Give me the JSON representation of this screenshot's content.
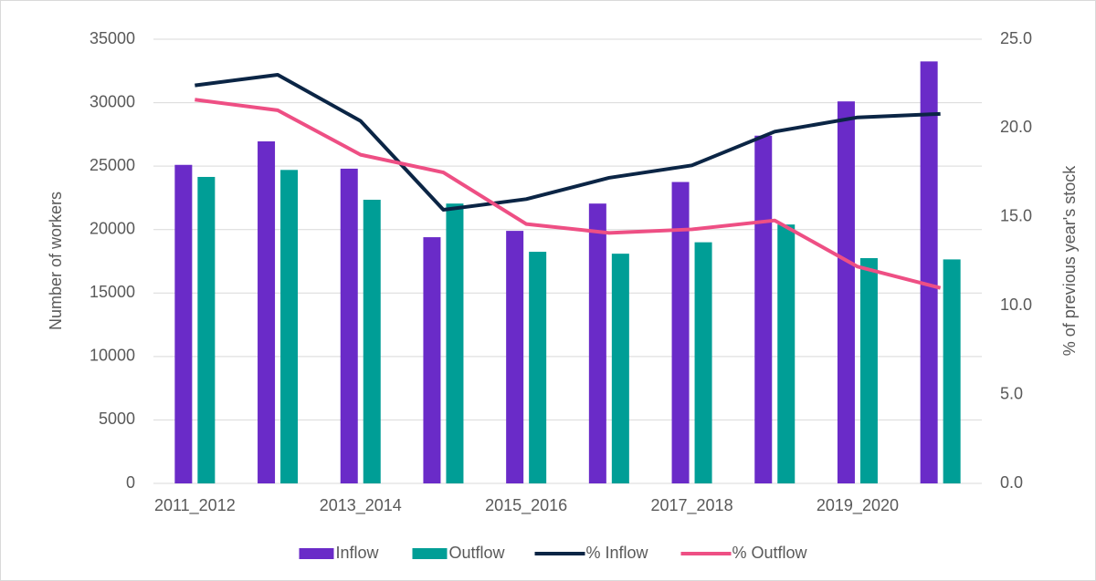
{
  "chart_data": {
    "type": "bar_line",
    "categories": [
      "2011_2012",
      null,
      "2013_2014",
      null,
      "2015_2016",
      null,
      "2017_2018",
      null,
      "2019_2020",
      null
    ],
    "ylabel": "Number of workers",
    "y2label": "% of previous year's stock",
    "ylim": [
      0,
      35000
    ],
    "yticks": [
      0,
      5000,
      10000,
      15000,
      20000,
      25000,
      30000,
      35000
    ],
    "y2lim": [
      0,
      25
    ],
    "y2ticks": [
      {
        "value": 0,
        "label": "0.0"
      },
      {
        "value": 5,
        "label": "5.0"
      },
      {
        "value": 10,
        "label": "10.0"
      },
      {
        "value": 15,
        "label": "15.0"
      },
      {
        "value": 20,
        "label": "20.0"
      },
      {
        "value": 25,
        "label": "25.0"
      }
    ],
    "grid": true,
    "legend": "bottom",
    "series": [
      {
        "name": "Inflow",
        "kind": "bar",
        "color": "#6a2bc8",
        "values": [
          25100,
          26950,
          24800,
          19400,
          19900,
          22050,
          23750,
          27400,
          30100,
          33250
        ]
      },
      {
        "name": "Outflow",
        "kind": "bar",
        "color": "#009e96",
        "values": [
          24150,
          24700,
          22350,
          22050,
          18250,
          18100,
          19000,
          20400,
          17750,
          17650
        ]
      },
      {
        "name": "% Inflow",
        "kind": "line",
        "axis": "y2",
        "color": "#0b2545",
        "values": [
          22.4,
          23.0,
          20.4,
          15.4,
          16.0,
          17.2,
          17.9,
          19.8,
          20.6,
          20.8
        ]
      },
      {
        "name": "% Outflow",
        "kind": "line",
        "axis": "y2",
        "color": "#ee4f84",
        "values": [
          21.6,
          21.0,
          18.5,
          17.5,
          14.6,
          14.1,
          14.3,
          14.8,
          12.2,
          11.0
        ]
      }
    ]
  }
}
